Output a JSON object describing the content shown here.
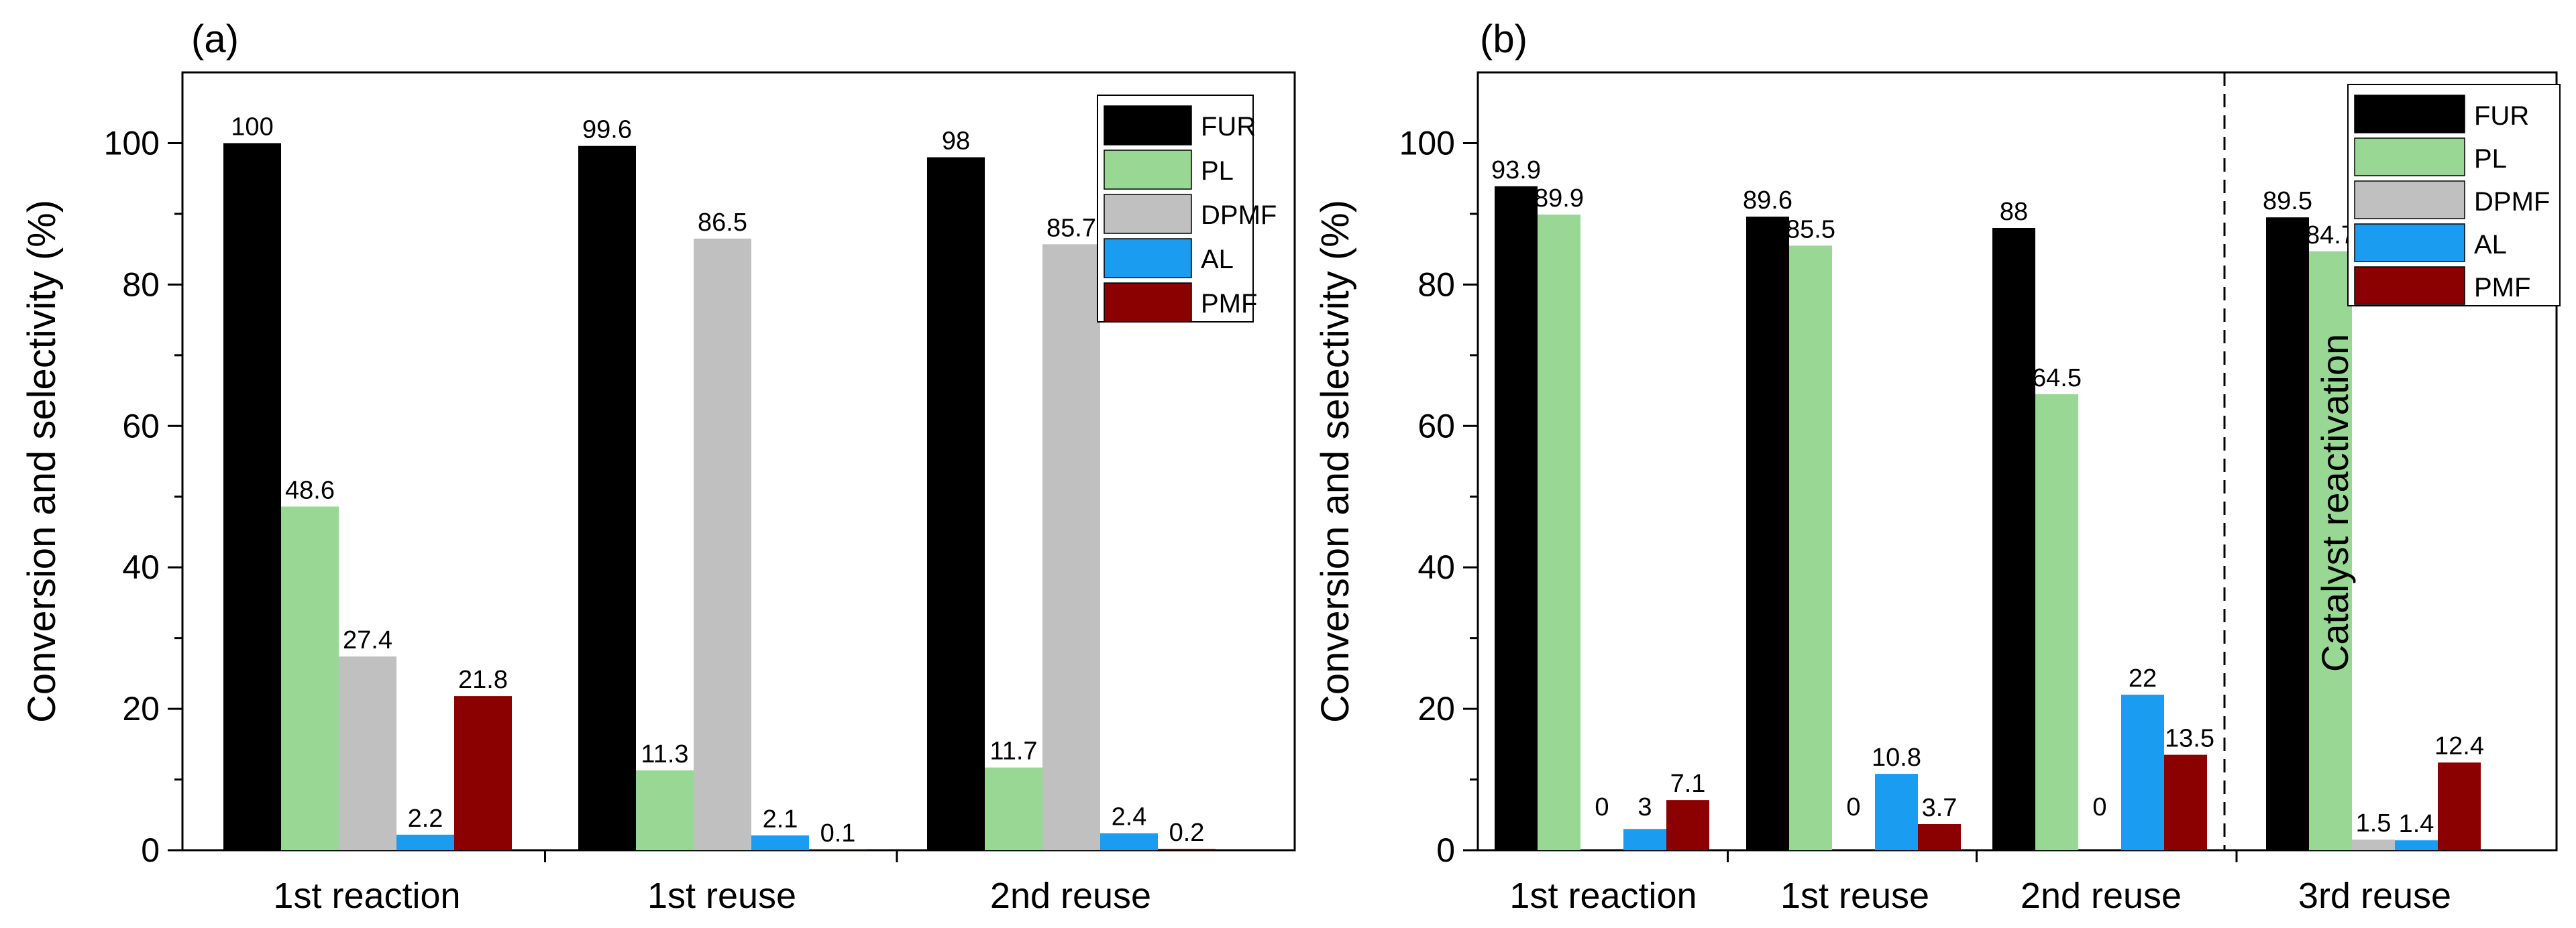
{
  "chart_data": [
    {
      "panel": "(a)",
      "type": "bar",
      "ylabel": "Conversion and selectivity (%)",
      "ylim": [
        0,
        110
      ],
      "yticks": [
        0,
        20,
        40,
        60,
        80,
        100
      ],
      "categories": [
        "1st reaction",
        "1st reuse",
        "2nd reuse"
      ],
      "legend_position": "top-right",
      "series": [
        {
          "name": "FUR",
          "color": "#000000",
          "values": [
            100,
            99.6,
            98
          ],
          "labels": [
            "100",
            "99.6",
            "98"
          ]
        },
        {
          "name": "PL",
          "color": "#99d894",
          "values": [
            48.6,
            11.3,
            11.7
          ],
          "labels": [
            "48.6",
            "11.3",
            "11.7"
          ]
        },
        {
          "name": "DPMF",
          "color": "#c0c0c0",
          "values": [
            27.4,
            86.5,
            85.7
          ],
          "labels": [
            "27.4",
            "86.5",
            "85.7"
          ]
        },
        {
          "name": "AL",
          "color": "#1a9cf0",
          "values": [
            2.2,
            2.1,
            2.4
          ],
          "labels": [
            "2.2",
            "2.1",
            "2.4"
          ]
        },
        {
          "name": "PMF",
          "color": "#8b0000",
          "values": [
            21.8,
            0.1,
            0.2
          ],
          "labels": [
            "21.8",
            "0.1",
            "0.2"
          ]
        }
      ]
    },
    {
      "panel": "(b)",
      "type": "bar",
      "ylabel": "Conversion and selectivity (%)",
      "ylim": [
        0,
        110
      ],
      "yticks": [
        0,
        20,
        40,
        60,
        80,
        100
      ],
      "categories": [
        "1st reaction",
        "1st reuse",
        "2nd reuse",
        "3rd reuse"
      ],
      "legend_position": "top-right",
      "annotation": "Catalyst reactivation",
      "series": [
        {
          "name": "FUR",
          "color": "#000000",
          "values": [
            93.9,
            89.6,
            88,
            89.5
          ],
          "labels": [
            "93.9",
            "89.6",
            "88",
            "89.5"
          ]
        },
        {
          "name": "PL",
          "color": "#99d894",
          "values": [
            89.9,
            85.5,
            64.5,
            84.7
          ],
          "labels": [
            "89.9",
            "85.5",
            "64.5",
            "84.7"
          ]
        },
        {
          "name": "DPMF",
          "color": "#c0c0c0",
          "values": [
            0,
            0,
            0,
            1.5
          ],
          "labels": [
            "0",
            "0",
            "0",
            "1.5"
          ]
        },
        {
          "name": "AL",
          "color": "#1a9cf0",
          "values": [
            3,
            10.8,
            22,
            1.4
          ],
          "labels": [
            "3",
            "10.8",
            "22",
            "1.4"
          ]
        },
        {
          "name": "PMF",
          "color": "#8b0000",
          "values": [
            7.1,
            3.7,
            13.5,
            12.4
          ],
          "labels": [
            "7.1",
            "3.7",
            "13.5",
            "12.4"
          ]
        }
      ]
    }
  ]
}
